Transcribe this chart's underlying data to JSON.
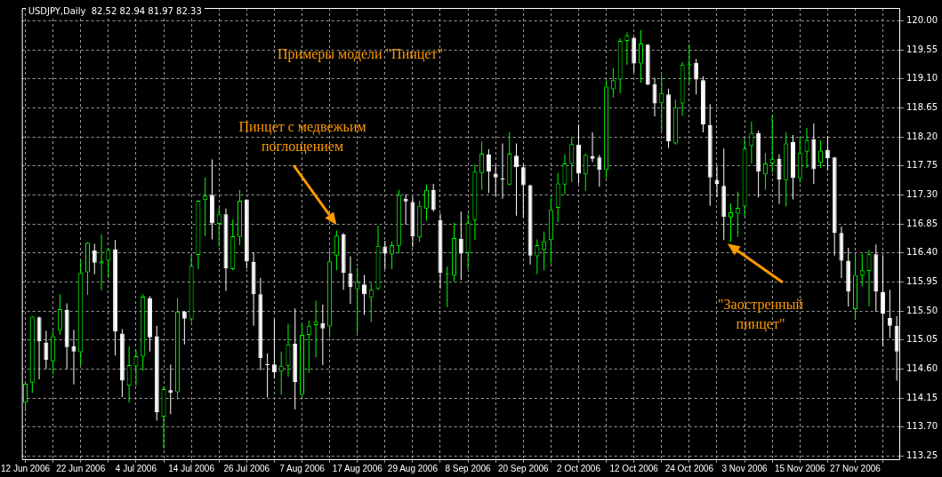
{
  "chart_data": {
    "type": "candlestick",
    "title": "Примеры модели \"Пинцет\"",
    "subtitle": "USDJPY,Daily  82.52 82.94 81.97 82.33",
    "annotations": [
      "Пинцет с медвежьим поглощением",
      "\"Заостренный пинцет\""
    ],
    "categories": [
      "12 Jun 2006",
      null,
      null,
      null,
      null,
      null,
      null,
      null,
      "22 Jun 2006",
      null,
      null,
      null,
      null,
      null,
      null,
      null,
      "4 Jul 2006",
      null,
      null,
      null,
      null,
      null,
      null,
      null,
      "14 Jul 2006",
      null,
      null,
      null,
      null,
      null,
      null,
      null,
      "26 Jul 2006",
      null,
      null,
      null,
      null,
      null,
      null,
      null,
      "7 Aug 2006",
      null,
      null,
      null,
      null,
      null,
      null,
      null,
      "17 Aug 2006",
      null,
      null,
      null,
      null,
      null,
      null,
      null,
      "29 Aug 2006",
      null,
      null,
      null,
      null,
      null,
      null,
      null,
      "8 Sep 2006",
      null,
      null,
      null,
      null,
      null,
      null,
      null,
      "20 Sep 2006",
      null,
      null,
      null,
      null,
      null,
      null,
      null,
      "2 Oct 2006",
      null,
      null,
      null,
      null,
      null,
      null,
      null,
      "12 Oct 2006",
      null,
      null,
      null,
      null,
      null,
      null,
      null,
      "24 Oct 2006",
      null,
      null,
      null,
      null,
      null,
      null,
      null,
      "3 Nov 2006",
      null,
      null,
      null,
      null,
      null,
      null,
      null,
      "15 Nov 2006",
      null,
      null,
      null,
      null,
      null,
      null,
      null,
      "27 Nov 2006",
      null,
      null,
      null,
      null,
      null,
      null
    ],
    "ohlc": [
      [
        114.08,
        114.41,
        113.94,
        114.37
      ],
      [
        114.39,
        115.42,
        114.23,
        115.41
      ],
      [
        115.4,
        115.41,
        114.44,
        115.03
      ],
      [
        115.01,
        115.19,
        114.6,
        114.74
      ],
      [
        114.72,
        115.19,
        114.52,
        115.11
      ],
      [
        115.2,
        115.76,
        115.13,
        115.53
      ],
      [
        115.52,
        115.62,
        114.6,
        114.94
      ],
      [
        114.95,
        115.21,
        114.36,
        114.87
      ],
      [
        114.86,
        116.28,
        114.66,
        116.09
      ],
      [
        116.1,
        116.57,
        115.75,
        116.56
      ],
      [
        116.44,
        116.54,
        116.07,
        116.25
      ],
      [
        116.24,
        116.69,
        115.82,
        116.27
      ],
      [
        116.28,
        116.48,
        116.01,
        116.45
      ],
      [
        116.46,
        116.6,
        114.81,
        115.18
      ],
      [
        115.15,
        115.22,
        114.16,
        114.42
      ],
      [
        114.34,
        114.95,
        114.08,
        114.66
      ],
      [
        114.64,
        114.89,
        114.34,
        114.8
      ],
      [
        114.79,
        115.76,
        114.57,
        115.72
      ],
      [
        115.7,
        115.73,
        114.87,
        115.09
      ],
      [
        115.11,
        115.27,
        113.8,
        113.93
      ],
      [
        113.86,
        114.33,
        113.37,
        114.29
      ],
      [
        114.27,
        114.67,
        113.9,
        114.23
      ],
      [
        114.24,
        115.7,
        114.13,
        115.49
      ],
      [
        115.49,
        115.5,
        114.98,
        115.38
      ],
      [
        115.37,
        116.38,
        115.33,
        116.2
      ],
      [
        116.37,
        117.22,
        116.15,
        117.21
      ],
      [
        117.22,
        117.57,
        116.66,
        117.29
      ],
      [
        117.3,
        117.85,
        116.61,
        116.86
      ],
      [
        116.85,
        117.1,
        116.5,
        117.0
      ],
      [
        117.0,
        117.09,
        115.81,
        116.16
      ],
      [
        116.15,
        116.92,
        116.13,
        116.66
      ],
      [
        116.65,
        117.38,
        116.52,
        117.21
      ],
      [
        117.23,
        117.23,
        116.16,
        116.27
      ],
      [
        116.26,
        116.41,
        115.27,
        115.76
      ],
      [
        115.76,
        116.01,
        114.58,
        114.77
      ],
      [
        114.67,
        114.84,
        114.16,
        114.66
      ],
      [
        114.67,
        115.37,
        114.45,
        114.55
      ],
      [
        114.56,
        114.87,
        114.2,
        114.65
      ],
      [
        114.65,
        115.3,
        114.48,
        114.98
      ],
      [
        114.99,
        115.54,
        113.97,
        114.4
      ],
      [
        114.2,
        115.3,
        114.16,
        115.13
      ],
      [
        115.13,
        115.35,
        114.54,
        115.27
      ],
      [
        115.28,
        115.66,
        114.78,
        115.34
      ],
      [
        115.31,
        115.6,
        114.66,
        115.23
      ],
      [
        115.26,
        116.43,
        115.09,
        116.27
      ],
      [
        116.36,
        116.75,
        116.13,
        116.67
      ],
      [
        116.69,
        116.71,
        115.83,
        116.09
      ],
      [
        116.08,
        116.35,
        115.61,
        115.87
      ],
      [
        115.84,
        116.17,
        115.16,
        115.95
      ],
      [
        115.91,
        116.06,
        115.44,
        115.76
      ],
      [
        115.71,
        115.94,
        115.33,
        115.83
      ],
      [
        115.85,
        116.82,
        115.82,
        116.51
      ],
      [
        116.5,
        116.59,
        116.15,
        116.39
      ],
      [
        116.38,
        116.58,
        116.15,
        116.52
      ],
      [
        116.51,
        117.38,
        116.39,
        117.3
      ],
      [
        117.24,
        117.31,
        116.84,
        117.2
      ],
      [
        117.19,
        117.27,
        116.49,
        116.66
      ],
      [
        116.64,
        117.21,
        116.57,
        117.13
      ],
      [
        117.09,
        117.46,
        116.9,
        117.38
      ],
      [
        117.38,
        117.47,
        117.04,
        117.07
      ],
      [
        116.91,
        117.01,
        115.85,
        116.09
      ],
      [
        116.07,
        116.19,
        115.56,
        116.08
      ],
      [
        116.05,
        116.87,
        115.96,
        116.63
      ],
      [
        116.62,
        117.04,
        115.98,
        116.39
      ],
      [
        116.4,
        117.01,
        116.15,
        116.87
      ],
      [
        116.91,
        117.77,
        116.6,
        117.66
      ],
      [
        117.64,
        118.13,
        117.38,
        117.94
      ],
      [
        117.93,
        118.01,
        117.33,
        117.66
      ],
      [
        117.63,
        117.77,
        117.28,
        117.57
      ],
      [
        117.55,
        118.1,
        117.24,
        117.54
      ],
      [
        117.46,
        118.27,
        117.45,
        117.94
      ],
      [
        117.91,
        118.1,
        116.98,
        117.73
      ],
      [
        117.73,
        117.77,
        116.95,
        117.45
      ],
      [
        117.45,
        117.46,
        116.22,
        116.36
      ],
      [
        116.35,
        116.61,
        116.07,
        116.52
      ],
      [
        116.45,
        116.73,
        116.13,
        116.58
      ],
      [
        116.6,
        117.25,
        116.24,
        117.07
      ],
      [
        117.1,
        117.64,
        116.88,
        117.48
      ],
      [
        117.46,
        117.93,
        117.31,
        117.79
      ],
      [
        117.78,
        118.19,
        117.5,
        118.09
      ],
      [
        118.08,
        118.39,
        117.48,
        117.63
      ],
      [
        117.62,
        117.94,
        117.36,
        117.92
      ],
      [
        117.9,
        118.27,
        117.81,
        117.86
      ],
      [
        117.88,
        117.92,
        117.43,
        117.69
      ],
      [
        117.69,
        119.08,
        117.56,
        118.98
      ],
      [
        118.94,
        119.27,
        118.81,
        119.08
      ],
      [
        119.09,
        119.73,
        118.88,
        119.69
      ],
      [
        119.69,
        119.82,
        119.32,
        119.77
      ],
      [
        119.74,
        119.75,
        119.2,
        119.34
      ],
      [
        119.34,
        119.86,
        119.04,
        119.65
      ],
      [
        119.63,
        119.64,
        119.0,
        119.01
      ],
      [
        119.02,
        119.12,
        118.52,
        118.72
      ],
      [
        118.73,
        119.16,
        118.29,
        118.88
      ],
      [
        118.86,
        118.95,
        118.03,
        118.13
      ],
      [
        118.1,
        118.78,
        118.08,
        118.66
      ],
      [
        118.72,
        119.36,
        118.53,
        119.32
      ],
      [
        119.31,
        119.64,
        119.04,
        119.33
      ],
      [
        119.35,
        119.41,
        118.86,
        119.09
      ],
      [
        119.08,
        119.14,
        118.27,
        118.39
      ],
      [
        118.38,
        118.71,
        117.13,
        117.57
      ],
      [
        117.53,
        117.74,
        117.27,
        117.47
      ],
      [
        117.44,
        118.02,
        116.6,
        116.96
      ],
      [
        116.95,
        117.17,
        116.57,
        117.03
      ],
      [
        117.01,
        117.35,
        116.65,
        117.1
      ],
      [
        117.12,
        118.18,
        116.97,
        118.02
      ],
      [
        118.06,
        118.44,
        117.79,
        118.26
      ],
      [
        118.26,
        118.3,
        117.26,
        117.66
      ],
      [
        117.62,
        117.95,
        117.38,
        117.79
      ],
      [
        117.79,
        118.54,
        117.65,
        117.86
      ],
      [
        117.86,
        117.93,
        117.16,
        117.54
      ],
      [
        117.53,
        118.27,
        117.12,
        118.1
      ],
      [
        118.12,
        118.23,
        117.23,
        117.56
      ],
      [
        117.56,
        118.2,
        117.49,
        117.95
      ],
      [
        117.97,
        118.34,
        117.72,
        118.15
      ],
      [
        118.16,
        118.41,
        117.47,
        117.7
      ],
      [
        117.8,
        118.15,
        117.72,
        117.99
      ],
      [
        118.0,
        118.21,
        117.68,
        117.87
      ],
      [
        117.88,
        117.89,
        116.36,
        116.71
      ],
      [
        116.71,
        116.81,
        116.01,
        116.28
      ],
      [
        116.28,
        116.48,
        115.57,
        115.8
      ],
      [
        115.53,
        116.39,
        115.37,
        116.06
      ],
      [
        116.05,
        116.39,
        115.88,
        116.13
      ],
      [
        116.12,
        116.45,
        115.57,
        116.38
      ],
      [
        116.38,
        116.53,
        115.49,
        115.8
      ],
      [
        115.79,
        116.36,
        114.95,
        115.46
      ],
      [
        115.39,
        115.83,
        115.08,
        115.27
      ],
      [
        115.27,
        115.42,
        114.42,
        114.87
      ]
    ],
    "colors": [
      "#00ff00",
      "#00ff00",
      "#ffffff",
      "#ffffff",
      "#00ff00",
      "#00ff00",
      "#ffffff",
      "#ffffff",
      "#00ff00",
      "#00ff00",
      "#ffffff",
      "#00ff00",
      "#00ff00",
      "#ffffff",
      "#ffffff",
      "#00ff00",
      "#00ff00",
      "#00ff00",
      "#ffffff",
      "#ffffff",
      "#00ff00",
      "#ffffff",
      "#00ff00",
      "#ffffff",
      "#00ff00",
      "#00ff00",
      "#00ff00",
      "#ffffff",
      "#00ff00",
      "#ffffff",
      "#00ff00",
      "#00ff00",
      "#ffffff",
      "#ffffff",
      "#ffffff",
      "#ffffff",
      "#ffffff",
      "#00ff00",
      "#00ff00",
      "#ffffff",
      "#00ff00",
      "#00ff00",
      "#00ff00",
      "#ffffff",
      "#00ff00",
      "#00ff00",
      "#ffffff",
      "#ffffff",
      "#00ff00",
      "#ffffff",
      "#00ff00",
      "#00ff00",
      "#ffffff",
      "#00ff00",
      "#00ff00",
      "#ffffff",
      "#ffffff",
      "#00ff00",
      "#00ff00",
      "#ffffff",
      "#ffffff",
      "#00ff00",
      "#00ff00",
      "#ffffff",
      "#00ff00",
      "#00ff00",
      "#00ff00",
      "#ffffff",
      "#ffffff",
      "#ffffff",
      "#00ff00",
      "#ffffff",
      "#ffffff",
      "#ffffff",
      "#00ff00",
      "#00ff00",
      "#00ff00",
      "#00ff00",
      "#00ff00",
      "#00ff00",
      "#ffffff",
      "#00ff00",
      "#ffffff",
      "#ffffff",
      "#00ff00",
      "#00ff00",
      "#00ff00",
      "#00ff00",
      "#ffffff",
      "#00ff00",
      "#ffffff",
      "#ffffff",
      "#00ff00",
      "#ffffff",
      "#00ff00",
      "#00ff00",
      "#00ff00",
      "#ffffff",
      "#ffffff",
      "#ffffff",
      "#ffffff",
      "#ffffff",
      "#00ff00",
      "#00ff00",
      "#00ff00",
      "#00ff00",
      "#ffffff",
      "#00ff00",
      "#00ff00",
      "#ffffff",
      "#00ff00",
      "#ffffff",
      "#00ff00",
      "#00ff00",
      "#ffffff",
      "#00ff00",
      "#ffffff",
      "#ffffff",
      "#ffffff",
      "#ffffff",
      "#00ff00",
      "#00ff00",
      "#00ff00",
      "#ffffff",
      "#ffffff",
      "#ffffff",
      "#ffffff"
    ],
    "ylim": [
      113.2,
      120.2
    ],
    "yticks": [
      {
        "value": 120,
        "label": "120.00"
      },
      119.55,
      {
        "value": 119.1,
        "label": "119.10"
      },
      118.65,
      {
        "value": 118.2,
        "label": "118.20"
      },
      117.75,
      {
        "value": 117.3,
        "label": "117.30"
      },
      116.85,
      {
        "value": 116.4,
        "label": "116.40"
      },
      115.95,
      {
        "value": 115.5,
        "label": "115.50"
      },
      115.05,
      {
        "value": 114.6,
        "label": "114.60"
      },
      114.15,
      {
        "value": 113.7,
        "label": "113.70"
      },
      113.25
    ],
    "grid": true
  }
}
